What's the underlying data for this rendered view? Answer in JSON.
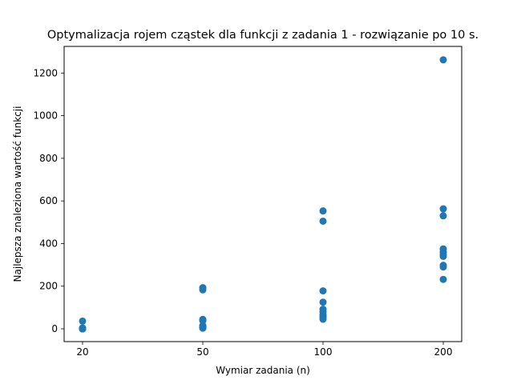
{
  "chart_data": {
    "type": "scatter",
    "title": "Optymalizacja rojem cząstek dla funkcji z zadania 1 - rozwiązanie po 10 s.",
    "xlabel": "Wymiar zadania (n)",
    "ylabel": "Najlepsza znaleziona wartość funkcji",
    "x_categories": [
      "20",
      "50",
      "100",
      "200"
    ],
    "y_ticks": [
      0,
      200,
      400,
      600,
      800,
      1000,
      1200
    ],
    "ylim": [
      -60,
      1325
    ],
    "grid": false,
    "marker_color": "#1f77b4",
    "points": [
      {
        "x": "20",
        "y": 36
      },
      {
        "x": "20",
        "y": 4
      },
      {
        "x": "20",
        "y": 2
      },
      {
        "x": "20",
        "y": 1
      },
      {
        "x": "20",
        "y": 0
      },
      {
        "x": "20",
        "y": 0
      },
      {
        "x": "20",
        "y": 0
      },
      {
        "x": "20",
        "y": 0
      },
      {
        "x": "20",
        "y": 0
      },
      {
        "x": "20",
        "y": 0
      },
      {
        "x": "50",
        "y": 193
      },
      {
        "x": "50",
        "y": 183
      },
      {
        "x": "50",
        "y": 44
      },
      {
        "x": "50",
        "y": 38
      },
      {
        "x": "50",
        "y": 15
      },
      {
        "x": "50",
        "y": 10
      },
      {
        "x": "50",
        "y": 7
      },
      {
        "x": "50",
        "y": 5
      },
      {
        "x": "50",
        "y": 3
      },
      {
        "x": "100",
        "y": 553
      },
      {
        "x": "100",
        "y": 505
      },
      {
        "x": "100",
        "y": 178
      },
      {
        "x": "100",
        "y": 125
      },
      {
        "x": "100",
        "y": 92
      },
      {
        "x": "100",
        "y": 80
      },
      {
        "x": "100",
        "y": 68
      },
      {
        "x": "100",
        "y": 60
      },
      {
        "x": "100",
        "y": 55
      },
      {
        "x": "100",
        "y": 45
      },
      {
        "x": "200",
        "y": 1262
      },
      {
        "x": "200",
        "y": 563
      },
      {
        "x": "200",
        "y": 530
      },
      {
        "x": "200",
        "y": 375
      },
      {
        "x": "200",
        "y": 360
      },
      {
        "x": "200",
        "y": 348
      },
      {
        "x": "200",
        "y": 340
      },
      {
        "x": "200",
        "y": 298
      },
      {
        "x": "200",
        "y": 290
      },
      {
        "x": "200",
        "y": 232
      }
    ]
  }
}
